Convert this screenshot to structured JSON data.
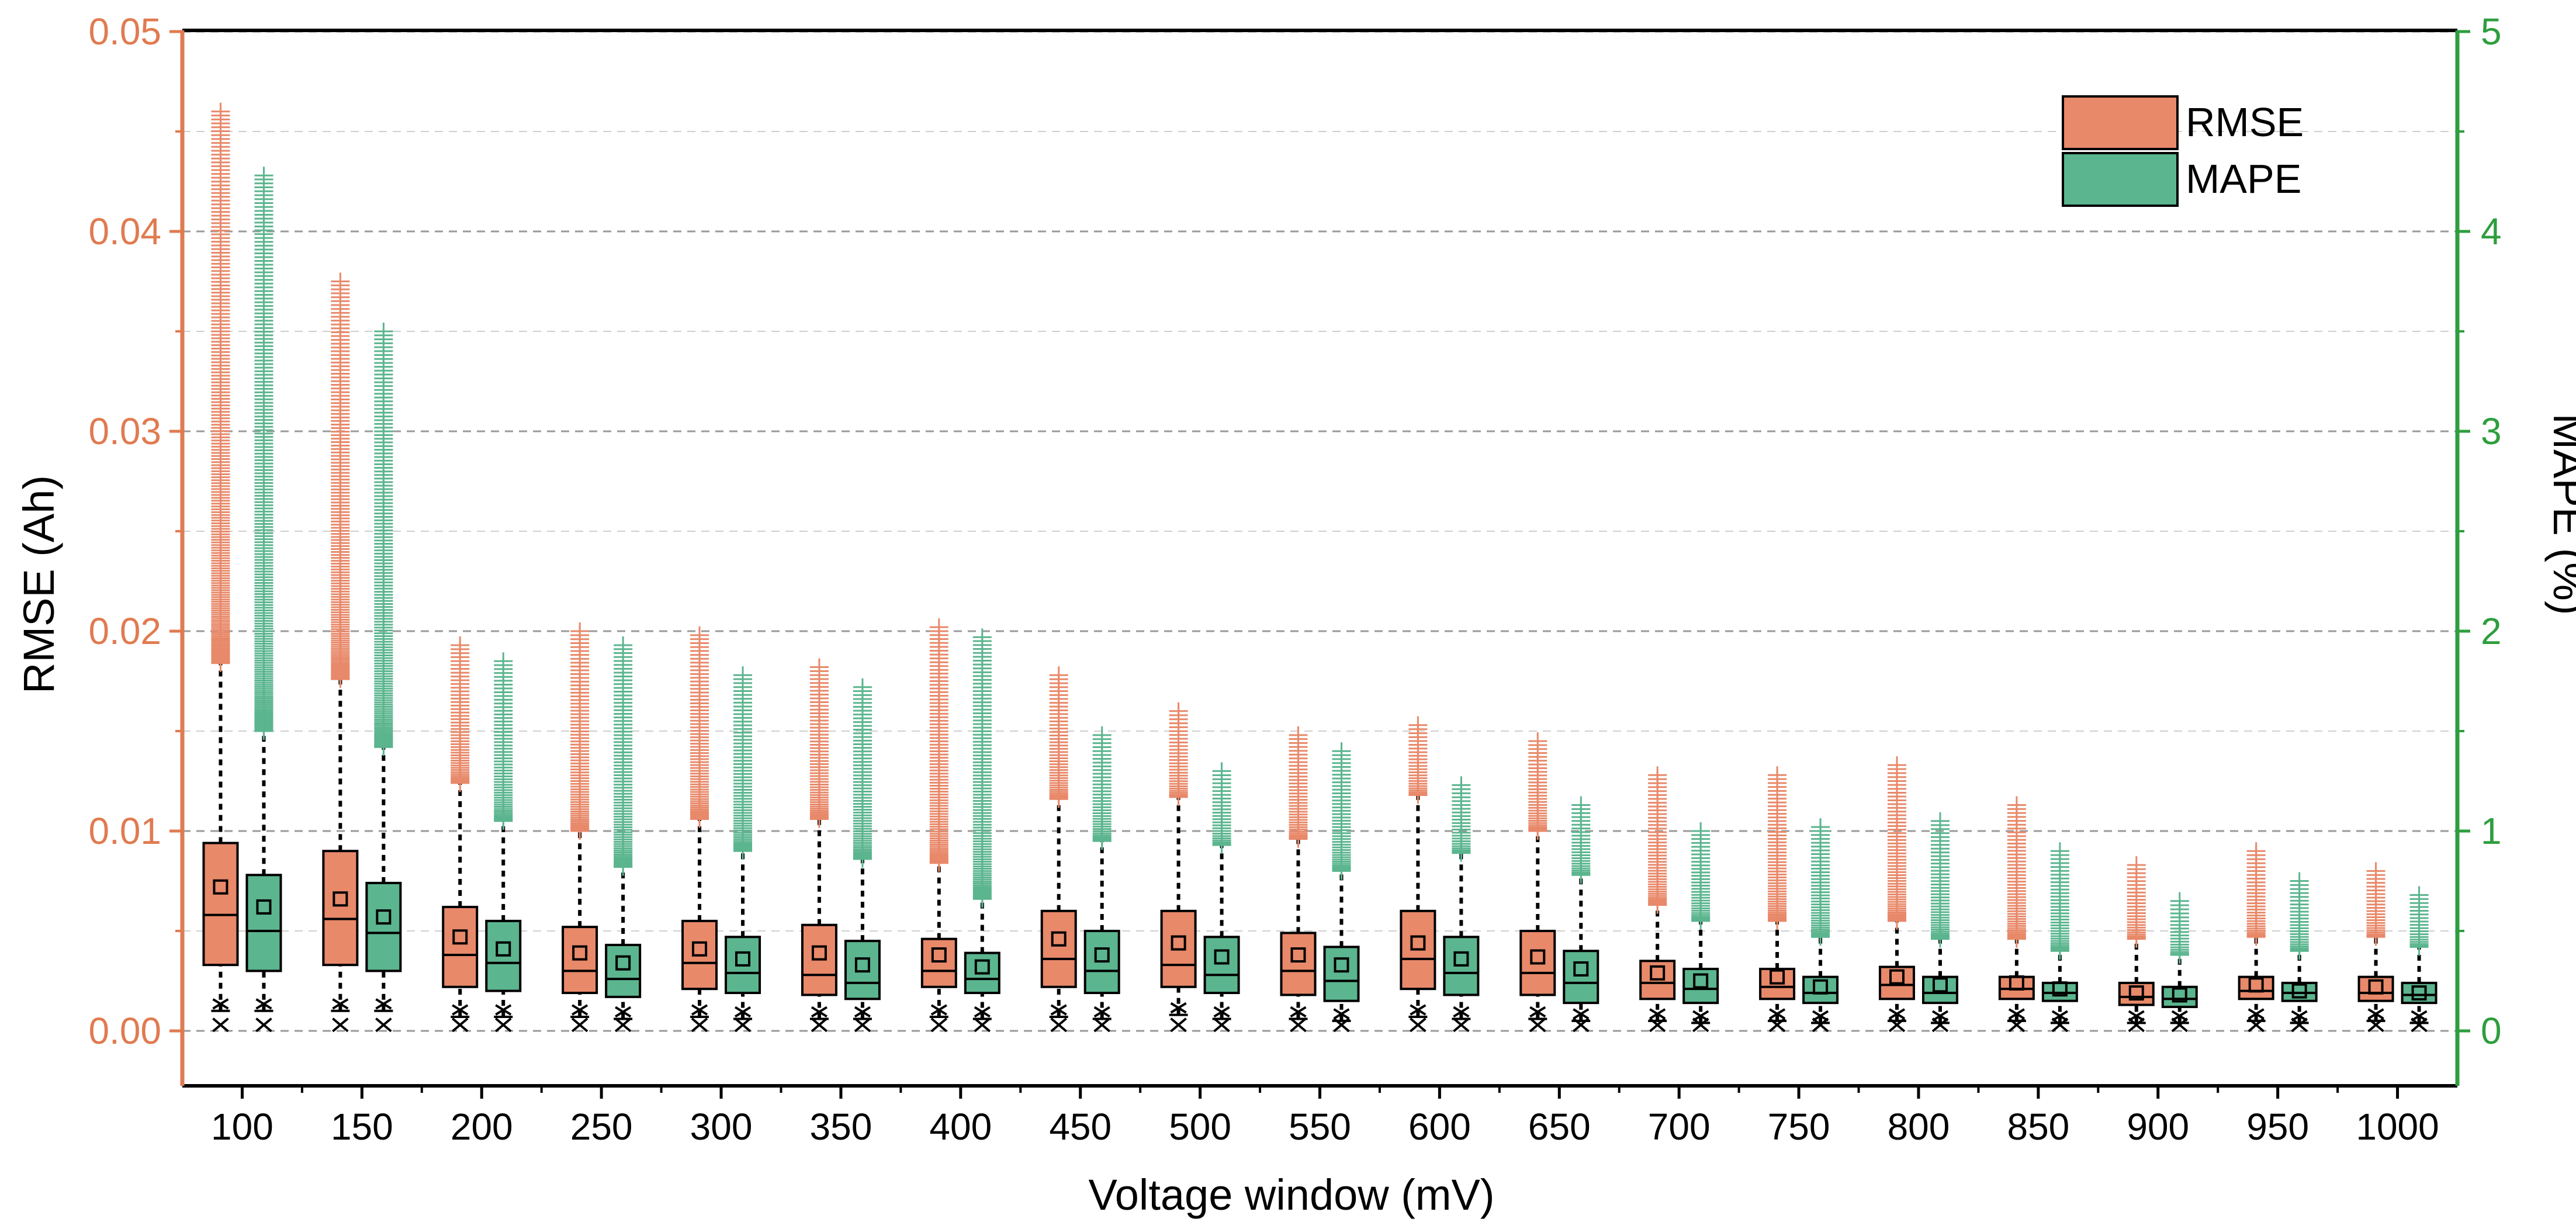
{
  "chart_data": {
    "type": "box",
    "xlabel": "Voltage window (mV)",
    "ylabel_left": "RMSE (Ah)",
    "ylabel_right": "MAPE (%)",
    "ylim_left": [
      -0.0015,
      0.05
    ],
    "ylim_right": [
      -0.15,
      5
    ],
    "yticks_left": [
      "0.00",
      "0.01",
      "0.02",
      "0.03",
      "0.04",
      "0.05"
    ],
    "yticks_right": [
      "0",
      "1",
      "2",
      "3",
      "4",
      "5"
    ],
    "categories": [
      "100",
      "150",
      "200",
      "250",
      "300",
      "350",
      "400",
      "450",
      "500",
      "550",
      "600",
      "650",
      "700",
      "750",
      "800",
      "850",
      "900",
      "950",
      "1000"
    ],
    "colors": {
      "rmse": "#E8896A",
      "mape": "#5BB58E",
      "left_axis": "#E07B50",
      "right_axis": "#2E9E3E"
    },
    "legend": {
      "position": "top-right",
      "entries": [
        "RMSE",
        "MAPE"
      ]
    },
    "series": [
      {
        "name": "RMSE",
        "axis": "left",
        "boxes": [
          {
            "q1": 0.0033,
            "median": 0.0058,
            "q3": 0.0094,
            "mean": 0.0072,
            "whisker_low": 0.001,
            "whisker_high": 0.0184,
            "outlier_max": 0.046,
            "min_marker": 0.0003
          },
          {
            "q1": 0.0033,
            "median": 0.0056,
            "q3": 0.009,
            "mean": 0.0066,
            "whisker_low": 0.001,
            "whisker_high": 0.0176,
            "outlier_max": 0.0375,
            "min_marker": 0.0003
          },
          {
            "q1": 0.0022,
            "median": 0.0038,
            "q3": 0.0062,
            "mean": 0.0047,
            "whisker_low": 0.0007,
            "whisker_high": 0.0124,
            "outlier_max": 0.0193,
            "min_marker": 0.0003
          },
          {
            "q1": 0.0019,
            "median": 0.003,
            "q3": 0.0052,
            "mean": 0.0039,
            "whisker_low": 0.0007,
            "whisker_high": 0.01,
            "outlier_max": 0.02,
            "min_marker": 0.0003
          },
          {
            "q1": 0.0021,
            "median": 0.0034,
            "q3": 0.0055,
            "mean": 0.0041,
            "whisker_low": 0.0007,
            "whisker_high": 0.0106,
            "outlier_max": 0.0198,
            "min_marker": 0.0003
          },
          {
            "q1": 0.0018,
            "median": 0.0028,
            "q3": 0.0053,
            "mean": 0.0039,
            "whisker_low": 0.0006,
            "whisker_high": 0.0106,
            "outlier_max": 0.0182,
            "min_marker": 0.0003
          },
          {
            "q1": 0.0022,
            "median": 0.003,
            "q3": 0.0046,
            "mean": 0.0038,
            "whisker_low": 0.0007,
            "whisker_high": 0.0084,
            "outlier_max": 0.0202,
            "min_marker": 0.0003
          },
          {
            "q1": 0.0022,
            "median": 0.0036,
            "q3": 0.006,
            "mean": 0.0046,
            "whisker_low": 0.0007,
            "whisker_high": 0.0116,
            "outlier_max": 0.0178,
            "min_marker": 0.0003
          },
          {
            "q1": 0.0022,
            "median": 0.0033,
            "q3": 0.006,
            "mean": 0.0044,
            "whisker_low": 0.0008,
            "whisker_high": 0.0117,
            "outlier_max": 0.016,
            "min_marker": 0.0003
          },
          {
            "q1": 0.0018,
            "median": 0.003,
            "q3": 0.0049,
            "mean": 0.0038,
            "whisker_low": 0.0006,
            "whisker_high": 0.0096,
            "outlier_max": 0.0148,
            "min_marker": 0.0003
          },
          {
            "q1": 0.0021,
            "median": 0.0036,
            "q3": 0.006,
            "mean": 0.0044,
            "whisker_low": 0.0007,
            "whisker_high": 0.0118,
            "outlier_max": 0.0153,
            "min_marker": 0.0003
          },
          {
            "q1": 0.0018,
            "median": 0.0029,
            "q3": 0.005,
            "mean": 0.0037,
            "whisker_low": 0.0006,
            "whisker_high": 0.01,
            "outlier_max": 0.0145,
            "min_marker": 0.0003
          },
          {
            "q1": 0.0016,
            "median": 0.0024,
            "q3": 0.0035,
            "mean": 0.0029,
            "whisker_low": 0.0005,
            "whisker_high": 0.0063,
            "outlier_max": 0.0128,
            "min_marker": 0.0003
          },
          {
            "q1": 0.0016,
            "median": 0.0022,
            "q3": 0.0031,
            "mean": 0.0027,
            "whisker_low": 0.0005,
            "whisker_high": 0.0055,
            "outlier_max": 0.0128,
            "min_marker": 0.0003
          },
          {
            "q1": 0.0016,
            "median": 0.0023,
            "q3": 0.0032,
            "mean": 0.0027,
            "whisker_low": 0.0005,
            "whisker_high": 0.0055,
            "outlier_max": 0.0133,
            "min_marker": 0.0003
          },
          {
            "q1": 0.0016,
            "median": 0.0021,
            "q3": 0.0027,
            "mean": 0.0024,
            "whisker_low": 0.0005,
            "whisker_high": 0.0046,
            "outlier_max": 0.0113,
            "min_marker": 0.0003
          },
          {
            "q1": 0.0013,
            "median": 0.0017,
            "q3": 0.0024,
            "mean": 0.0019,
            "whisker_low": 0.0004,
            "whisker_high": 0.0046,
            "outlier_max": 0.0083,
            "min_marker": 0.0003
          },
          {
            "q1": 0.0016,
            "median": 0.002,
            "q3": 0.0027,
            "mean": 0.0023,
            "whisker_low": 0.0005,
            "whisker_high": 0.0047,
            "outlier_max": 0.009,
            "min_marker": 0.0003
          },
          {
            "q1": 0.0015,
            "median": 0.0019,
            "q3": 0.0027,
            "mean": 0.0022,
            "whisker_low": 0.0005,
            "whisker_high": 0.0047,
            "outlier_max": 0.008,
            "min_marker": 0.0003
          }
        ]
      },
      {
        "name": "MAPE",
        "axis": "right",
        "boxes": [
          {
            "q1": 0.3,
            "median": 0.5,
            "q3": 0.78,
            "mean": 0.62,
            "whisker_low": 0.1,
            "whisker_high": 1.5,
            "outlier_max": 4.28,
            "min_marker": 0.03
          },
          {
            "q1": 0.3,
            "median": 0.49,
            "q3": 0.74,
            "mean": 0.57,
            "whisker_low": 0.1,
            "whisker_high": 1.42,
            "outlier_max": 3.5,
            "min_marker": 0.03
          },
          {
            "q1": 0.2,
            "median": 0.34,
            "q3": 0.55,
            "mean": 0.41,
            "whisker_low": 0.07,
            "whisker_high": 1.05,
            "outlier_max": 1.85,
            "min_marker": 0.03
          },
          {
            "q1": 0.17,
            "median": 0.26,
            "q3": 0.43,
            "mean": 0.34,
            "whisker_low": 0.06,
            "whisker_high": 0.82,
            "outlier_max": 1.93,
            "min_marker": 0.03
          },
          {
            "q1": 0.19,
            "median": 0.29,
            "q3": 0.47,
            "mean": 0.36,
            "whisker_low": 0.06,
            "whisker_high": 0.9,
            "outlier_max": 1.78,
            "min_marker": 0.03
          },
          {
            "q1": 0.16,
            "median": 0.24,
            "q3": 0.45,
            "mean": 0.33,
            "whisker_low": 0.06,
            "whisker_high": 0.86,
            "outlier_max": 1.72,
            "min_marker": 0.03
          },
          {
            "q1": 0.19,
            "median": 0.26,
            "q3": 0.39,
            "mean": 0.32,
            "whisker_low": 0.06,
            "whisker_high": 0.66,
            "outlier_max": 1.97,
            "min_marker": 0.03
          },
          {
            "q1": 0.19,
            "median": 0.3,
            "q3": 0.5,
            "mean": 0.38,
            "whisker_low": 0.06,
            "whisker_high": 0.95,
            "outlier_max": 1.48,
            "min_marker": 0.03
          },
          {
            "q1": 0.19,
            "median": 0.28,
            "q3": 0.47,
            "mean": 0.37,
            "whisker_low": 0.06,
            "whisker_high": 0.93,
            "outlier_max": 1.3,
            "min_marker": 0.03
          },
          {
            "q1": 0.15,
            "median": 0.25,
            "q3": 0.42,
            "mean": 0.33,
            "whisker_low": 0.05,
            "whisker_high": 0.8,
            "outlier_max": 1.4,
            "min_marker": 0.03
          },
          {
            "q1": 0.18,
            "median": 0.29,
            "q3": 0.47,
            "mean": 0.36,
            "whisker_low": 0.06,
            "whisker_high": 0.89,
            "outlier_max": 1.23,
            "min_marker": 0.03
          },
          {
            "q1": 0.14,
            "median": 0.24,
            "q3": 0.4,
            "mean": 0.31,
            "whisker_low": 0.05,
            "whisker_high": 0.78,
            "outlier_max": 1.13,
            "min_marker": 0.03
          },
          {
            "q1": 0.14,
            "median": 0.21,
            "q3": 0.31,
            "mean": 0.25,
            "whisker_low": 0.04,
            "whisker_high": 0.55,
            "outlier_max": 1.0,
            "min_marker": 0.03
          },
          {
            "q1": 0.14,
            "median": 0.19,
            "q3": 0.27,
            "mean": 0.22,
            "whisker_low": 0.04,
            "whisker_high": 0.47,
            "outlier_max": 1.02,
            "min_marker": 0.03
          },
          {
            "q1": 0.14,
            "median": 0.19,
            "q3": 0.27,
            "mean": 0.23,
            "whisker_low": 0.04,
            "whisker_high": 0.46,
            "outlier_max": 1.05,
            "min_marker": 0.03
          },
          {
            "q1": 0.15,
            "median": 0.19,
            "q3": 0.24,
            "mean": 0.21,
            "whisker_low": 0.04,
            "whisker_high": 0.4,
            "outlier_max": 0.9,
            "min_marker": 0.03
          },
          {
            "q1": 0.12,
            "median": 0.16,
            "q3": 0.22,
            "mean": 0.18,
            "whisker_low": 0.04,
            "whisker_high": 0.38,
            "outlier_max": 0.65,
            "min_marker": 0.03
          },
          {
            "q1": 0.15,
            "median": 0.19,
            "q3": 0.24,
            "mean": 0.2,
            "whisker_low": 0.04,
            "whisker_high": 0.4,
            "outlier_max": 0.75,
            "min_marker": 0.03
          },
          {
            "q1": 0.14,
            "median": 0.18,
            "q3": 0.24,
            "mean": 0.19,
            "whisker_low": 0.04,
            "whisker_high": 0.42,
            "outlier_max": 0.68,
            "min_marker": 0.03
          }
        ]
      }
    ]
  }
}
